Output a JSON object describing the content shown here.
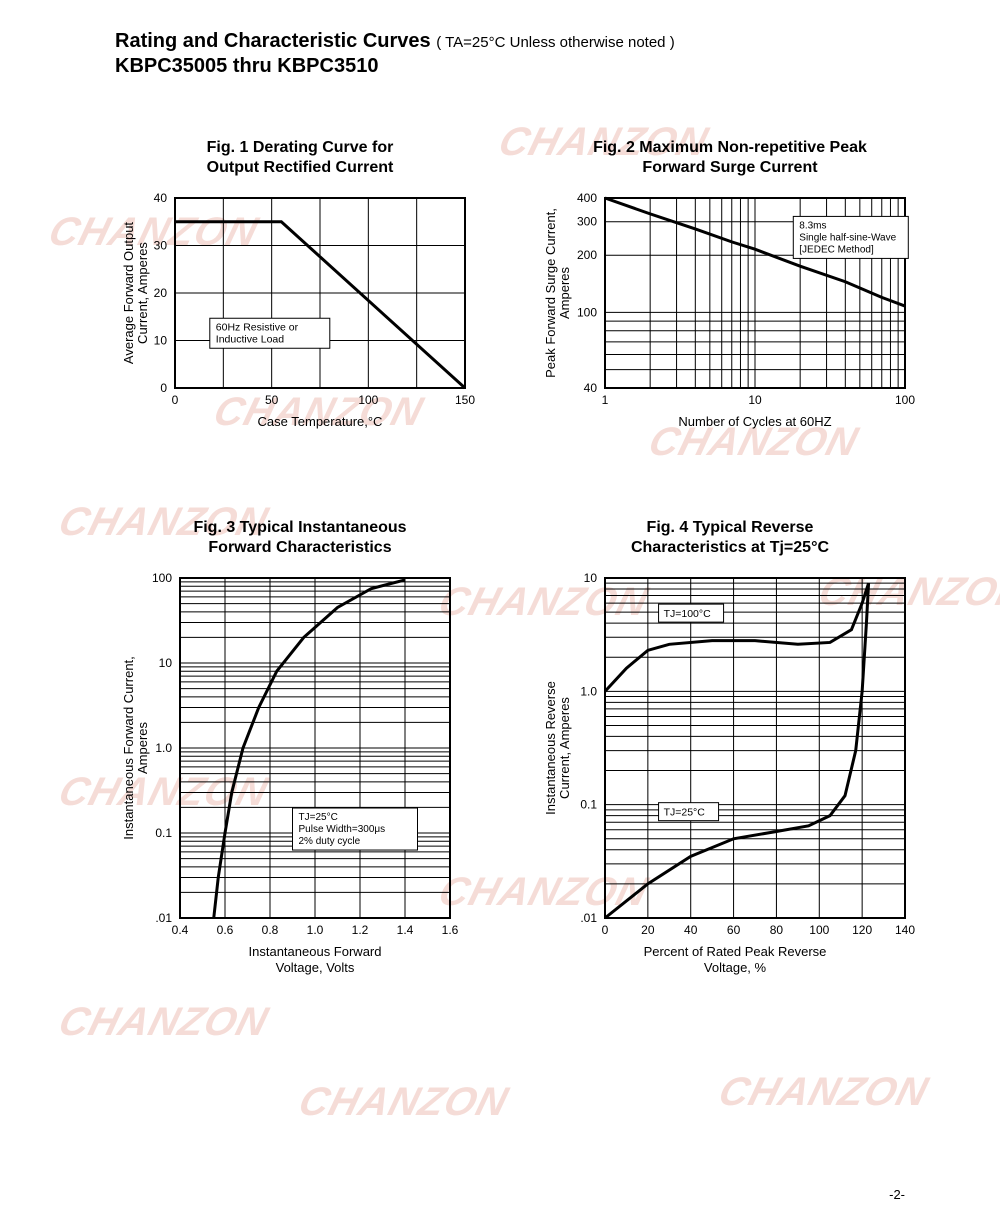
{
  "header": {
    "title_line1_bold": "Rating and Characteristic Curves",
    "title_line1_note": "( TA=25°C Unless otherwise noted )",
    "title_line2": "KBPC35005 thru KBPC3510"
  },
  "watermark_text": "CHANZON",
  "page_number": "-2-",
  "fig1": {
    "type": "line",
    "title_l1": "Fig. 1 Derating Curve for",
    "title_l2": "Output Rectified Current",
    "xlabel": "Case Temperature,°C",
    "ylabel_l1": "Average Forward Output",
    "ylabel_l2": "Current, Amperes",
    "xticks": [
      0,
      50,
      100,
      150
    ],
    "yticks": [
      0,
      10,
      20,
      30,
      40
    ],
    "xlim": [
      0,
      150
    ],
    "ylim": [
      0,
      40
    ],
    "annotation": "60Hz Resistive or\nInductive Load",
    "curve": [
      [
        0,
        35
      ],
      [
        50,
        35
      ],
      [
        55,
        35
      ],
      [
        150,
        0
      ]
    ],
    "line_color": "#000000",
    "line_width": 3,
    "grid_color": "#000000",
    "grid_width": 1,
    "bg": "#ffffff",
    "title_fontsize": 16,
    "label_fontsize": 13,
    "tick_fontsize": 12
  },
  "fig2": {
    "type": "line-loglog",
    "title_l1": "Fig. 2 Maximum Non-repetitive Peak",
    "title_l2": "Forward Surge Current",
    "xlabel": "Number of Cycles at 60HZ",
    "ylabel_l1": "Peak Forward Surge Current,",
    "ylabel_l2": "Amperes",
    "xticks": [
      1,
      10,
      100
    ],
    "yticks": [
      40,
      100,
      200,
      300,
      400
    ],
    "xlim": [
      1,
      100
    ],
    "ylim": [
      40,
      400
    ],
    "x_scale": "log",
    "y_scale": "log",
    "annotation": "8.3ms\nSingle half-sine-Wave\n[JEDEC Method]",
    "curve": [
      [
        1,
        400
      ],
      [
        2,
        330
      ],
      [
        4,
        275
      ],
      [
        7,
        235
      ],
      [
        10,
        215
      ],
      [
        20,
        175
      ],
      [
        40,
        145
      ],
      [
        70,
        120
      ],
      [
        100,
        108
      ]
    ],
    "line_color": "#000000",
    "line_width": 3,
    "grid_color": "#000000",
    "grid_width": 1,
    "bg": "#ffffff",
    "title_fontsize": 16,
    "label_fontsize": 13,
    "tick_fontsize": 12
  },
  "fig3": {
    "type": "line-semilogy",
    "title_l1": "Fig. 3 Typical Instantaneous",
    "title_l2": "Forward Characteristics",
    "xlabel_l1": "Instantaneous Forward",
    "xlabel_l2": "Voltage, Volts",
    "ylabel_l1": "Instantaneous Forward Current,",
    "ylabel_l2": "Amperes",
    "xticks": [
      0.4,
      0.6,
      0.8,
      1.0,
      1.2,
      1.4,
      1.6
    ],
    "yticks": [
      0.01,
      0.1,
      1.0,
      10,
      100
    ],
    "ytick_labels": [
      ".01",
      "0.1",
      "1.0",
      "10",
      "100"
    ],
    "xlim": [
      0.4,
      1.6
    ],
    "ylim": [
      0.01,
      100
    ],
    "y_scale": "log",
    "annotation": "TJ=25°C\nPulse Width=300μs\n2% duty cycle",
    "curve": [
      [
        0.55,
        0.01
      ],
      [
        0.57,
        0.03
      ],
      [
        0.6,
        0.1
      ],
      [
        0.63,
        0.3
      ],
      [
        0.68,
        1.0
      ],
      [
        0.75,
        3.0
      ],
      [
        0.83,
        8.0
      ],
      [
        0.95,
        20
      ],
      [
        1.1,
        45
      ],
      [
        1.25,
        75
      ],
      [
        1.4,
        95
      ]
    ],
    "line_color": "#000000",
    "line_width": 3,
    "grid_color": "#000000",
    "grid_width": 1,
    "bg": "#ffffff",
    "title_fontsize": 16,
    "label_fontsize": 13,
    "tick_fontsize": 12
  },
  "fig4": {
    "type": "line-semilogy",
    "title_l1": "Fig. 4 Typical Reverse",
    "title_l2": "Characteristics at Tj=25°C",
    "xlabel_l1": "Percent of Rated Peak Reverse",
    "xlabel_l2": "Voltage, %",
    "ylabel_l1": "Instantaneous Reverse",
    "ylabel_l2": "Current, Amperes",
    "xticks": [
      0,
      20,
      40,
      60,
      80,
      100,
      120,
      140
    ],
    "yticks": [
      0.01,
      0.1,
      1.0,
      10
    ],
    "ytick_labels": [
      ".01",
      "0.1",
      "1.0",
      "10"
    ],
    "xlim": [
      0,
      140
    ],
    "ylim": [
      0.01,
      10
    ],
    "y_scale": "log",
    "series": [
      {
        "label": "TJ=100°C",
        "points": [
          [
            0,
            1.0
          ],
          [
            10,
            1.6
          ],
          [
            20,
            2.3
          ],
          [
            30,
            2.6
          ],
          [
            50,
            2.8
          ],
          [
            70,
            2.8
          ],
          [
            90,
            2.6
          ],
          [
            105,
            2.7
          ],
          [
            115,
            3.5
          ],
          [
            120,
            6
          ],
          [
            123,
            9
          ]
        ]
      },
      {
        "label": "TJ=25°C",
        "points": [
          [
            0,
            0.01
          ],
          [
            20,
            0.02
          ],
          [
            40,
            0.035
          ],
          [
            60,
            0.05
          ],
          [
            80,
            0.058
          ],
          [
            95,
            0.065
          ],
          [
            105,
            0.08
          ],
          [
            112,
            0.12
          ],
          [
            117,
            0.3
          ],
          [
            120,
            1.0
          ],
          [
            122,
            4
          ],
          [
            123,
            9
          ]
        ]
      }
    ],
    "annotation_top": "TJ=100°C",
    "annotation_bot": "TJ=25°C",
    "line_color": "#000000",
    "line_width": 3,
    "grid_color": "#000000",
    "grid_width": 1,
    "bg": "#ffffff",
    "title_fontsize": 16,
    "label_fontsize": 13,
    "tick_fontsize": 12
  }
}
